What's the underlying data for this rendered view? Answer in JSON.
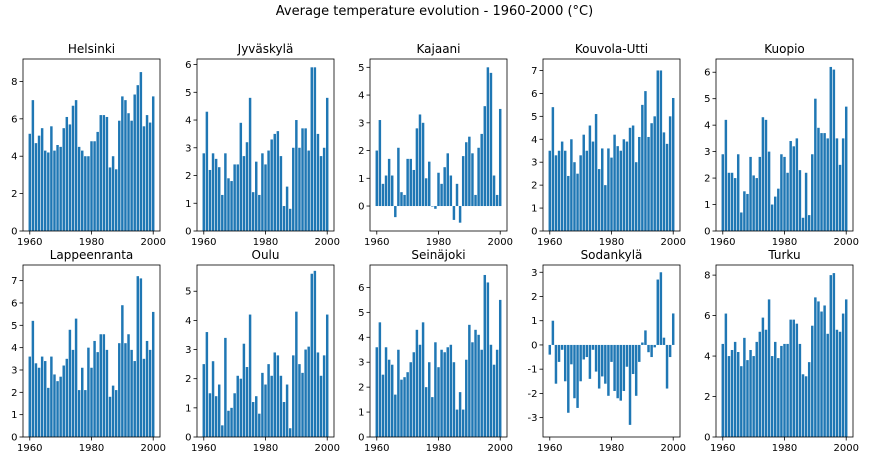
{
  "figure": {
    "title": "Average temperature evolution - 1960-2000 (°C)",
    "bar_color": "#1f77b4"
  },
  "chart_data": [
    {
      "type": "bar",
      "title": "Helsinki",
      "xlabel": "",
      "ylabel": "",
      "x_start": 1960,
      "x_end": 2000,
      "xticks": [
        1960,
        1980,
        2000
      ],
      "ylim": [
        0,
        9.2
      ],
      "yticks": [
        0,
        2,
        4,
        6,
        8
      ],
      "values": [
        5.2,
        7.0,
        4.7,
        5.1,
        5.5,
        4.3,
        4.2,
        5.6,
        4.3,
        4.6,
        4.5,
        5.5,
        6.1,
        5.7,
        6.7,
        7.0,
        4.5,
        4.3,
        4.0,
        4.0,
        4.8,
        4.8,
        5.3,
        6.2,
        6.2,
        6.1,
        3.4,
        4.0,
        3.3,
        5.9,
        7.2,
        7.0,
        6.3,
        5.9,
        7.3,
        7.8,
        8.5,
        5.6,
        6.2,
        5.8,
        7.2
      ]
    },
    {
      "type": "bar",
      "title": "Jyväskylä",
      "xlabel": "",
      "ylabel": "",
      "x_start": 1960,
      "x_end": 2000,
      "xticks": [
        1960,
        1980,
        2000
      ],
      "ylim": [
        0,
        6.2
      ],
      "yticks": [
        0,
        1,
        2,
        3,
        4,
        5,
        6
      ],
      "values": [
        2.8,
        4.3,
        2.2,
        2.8,
        2.6,
        2.3,
        1.3,
        2.8,
        1.9,
        1.8,
        2.4,
        2.4,
        3.9,
        2.7,
        3.2,
        4.8,
        1.4,
        2.5,
        1.3,
        2.8,
        2.4,
        2.9,
        3.3,
        3.5,
        3.6,
        2.7,
        0.9,
        1.6,
        0.8,
        3.0,
        4.0,
        3.0,
        3.7,
        3.7,
        2.9,
        5.9,
        5.9,
        3.5,
        2.7,
        3.0,
        4.8
      ]
    },
    {
      "type": "bar",
      "title": "Kajaani",
      "xlabel": "",
      "ylabel": "",
      "x_start": 1960,
      "x_end": 2000,
      "xticks": [
        1960,
        1980,
        2000
      ],
      "ylim": [
        -0.9,
        5.3
      ],
      "yticks": [
        0,
        1,
        2,
        3,
        4,
        5
      ],
      "values": [
        2.0,
        3.1,
        0.8,
        1.1,
        1.7,
        1.1,
        -0.4,
        2.1,
        0.5,
        0.4,
        1.7,
        1.7,
        1.3,
        2.8,
        3.3,
        3.0,
        1.0,
        1.6,
        0.0,
        -0.1,
        1.2,
        0.8,
        1.4,
        1.9,
        1.1,
        -0.5,
        0.8,
        -0.6,
        1.8,
        2.3,
        2.5,
        1.9,
        0.4,
        2.1,
        2.6,
        3.6,
        5.0,
        4.8,
        1.1,
        0.4,
        3.5
      ]
    },
    {
      "type": "bar",
      "title": "Kouvola-Utti",
      "xlabel": "",
      "ylabel": "",
      "x_start": 1960,
      "x_end": 2000,
      "xticks": [
        1960,
        1980,
        2000
      ],
      "ylim": [
        0,
        7.5
      ],
      "yticks": [
        0,
        1,
        2,
        3,
        4,
        5,
        6,
        7
      ],
      "values": [
        3.5,
        5.4,
        3.3,
        3.5,
        3.9,
        3.5,
        2.4,
        4.0,
        3.0,
        2.5,
        3.3,
        4.2,
        3.5,
        4.6,
        3.9,
        5.1,
        2.7,
        3.6,
        2.0,
        3.6,
        3.2,
        4.2,
        3.7,
        3.5,
        4.0,
        3.9,
        4.5,
        4.6,
        3.0,
        4.1,
        5.5,
        6.1,
        4.1,
        4.7,
        5.0,
        7.0,
        7.0,
        4.3,
        3.8,
        5.0,
        5.8
      ]
    },
    {
      "type": "bar",
      "title": "Kuopio",
      "xlabel": "",
      "ylabel": "",
      "x_start": 1960,
      "x_end": 2000,
      "xticks": [
        1960,
        1980,
        2000
      ],
      "ylim": [
        0,
        6.5
      ],
      "yticks": [
        0,
        1,
        2,
        3,
        4,
        5,
        6
      ],
      "values": [
        2.9,
        4.2,
        2.2,
        2.2,
        2.0,
        2.9,
        0.7,
        1.5,
        1.4,
        2.8,
        2.1,
        2.0,
        2.8,
        4.3,
        4.2,
        3.0,
        1.0,
        1.3,
        1.6,
        2.9,
        2.8,
        2.2,
        3.4,
        3.2,
        3.5,
        2.3,
        0.5,
        2.2,
        0.6,
        2.9,
        5.0,
        3.9,
        3.7,
        3.7,
        3.5,
        6.2,
        6.1,
        3.5,
        2.5,
        3.5,
        4.7
      ]
    },
    {
      "type": "bar",
      "title": "Lappeenranta",
      "xlabel": "",
      "ylabel": "",
      "x_start": 1960,
      "x_end": 2000,
      "xticks": [
        1960,
        1980,
        2000
      ],
      "ylim": [
        0,
        7.7
      ],
      "yticks": [
        0,
        1,
        2,
        3,
        4,
        5,
        6,
        7
      ],
      "values": [
        3.6,
        5.2,
        3.3,
        3.1,
        3.6,
        3.4,
        2.2,
        3.6,
        2.8,
        2.5,
        2.7,
        3.2,
        3.5,
        4.8,
        3.9,
        5.3,
        2.1,
        3.1,
        2.1,
        4.0,
        3.1,
        4.3,
        3.8,
        4.6,
        4.6,
        3.9,
        1.8,
        2.3,
        2.1,
        4.2,
        5.9,
        4.2,
        4.6,
        3.9,
        3.4,
        7.2,
        7.1,
        3.5,
        4.3,
        3.9,
        5.6
      ]
    },
    {
      "type": "bar",
      "title": "Oulu",
      "xlabel": "",
      "ylabel": "",
      "x_start": 1960,
      "x_end": 2000,
      "xticks": [
        1960,
        1980,
        2000
      ],
      "ylim": [
        0,
        5.9
      ],
      "yticks": [
        0,
        1,
        2,
        3,
        4,
        5
      ],
      "values": [
        2.5,
        3.6,
        1.5,
        2.6,
        1.4,
        1.8,
        0.4,
        3.4,
        0.9,
        1.0,
        1.5,
        2.1,
        2.0,
        3.2,
        2.4,
        4.2,
        1.2,
        1.4,
        0.8,
        2.2,
        1.8,
        2.5,
        2.1,
        2.9,
        2.8,
        2.1,
        1.2,
        1.8,
        0.3,
        2.8,
        4.3,
        2.5,
        2.2,
        3.0,
        3.1,
        5.6,
        5.7,
        2.9,
        2.1,
        2.8,
        4.2
      ]
    },
    {
      "type": "bar",
      "title": "Seinäjoki",
      "xlabel": "",
      "ylabel": "",
      "x_start": 1960,
      "x_end": 2000,
      "xticks": [
        1960,
        1980,
        2000
      ],
      "ylim": [
        0,
        6.9
      ],
      "yticks": [
        0,
        1,
        2,
        3,
        4,
        5,
        6
      ],
      "values": [
        3.6,
        4.6,
        2.5,
        3.6,
        3.1,
        2.9,
        1.7,
        3.5,
        2.3,
        2.4,
        2.6,
        3.0,
        3.4,
        4.3,
        3.7,
        4.6,
        2.0,
        3.0,
        1.6,
        3.8,
        2.8,
        3.5,
        3.4,
        3.6,
        3.7,
        3.0,
        1.1,
        1.8,
        1.1,
        3.1,
        4.5,
        3.8,
        4.3,
        4.1,
        3.5,
        6.5,
        6.2,
        3.7,
        2.9,
        3.5,
        5.5
      ]
    },
    {
      "type": "bar",
      "title": "Sodankylä",
      "xlabel": "",
      "ylabel": "",
      "x_start": 1960,
      "x_end": 2000,
      "xticks": [
        1960,
        1980,
        2000
      ],
      "ylim": [
        -3.8,
        3.3
      ],
      "yticks": [
        -3,
        -2,
        -1,
        0,
        1,
        2,
        3
      ],
      "values": [
        -0.4,
        1.0,
        -1.6,
        -0.7,
        -0.2,
        -1.5,
        -2.8,
        -0.8,
        -2.2,
        -2.6,
        -1.5,
        -0.6,
        -0.5,
        -1.4,
        -0.2,
        -1.1,
        -1.8,
        -1.3,
        -1.6,
        -2.1,
        -0.7,
        -1.9,
        -2.2,
        -2.3,
        -1.9,
        -0.9,
        -3.3,
        -1.2,
        -2.1,
        -0.7,
        0.1,
        0.6,
        -0.3,
        -0.5,
        -0.1,
        2.7,
        3.0,
        0.3,
        -1.8,
        -0.5,
        1.3
      ]
    },
    {
      "type": "bar",
      "title": "Turku",
      "xlabel": "",
      "ylabel": "",
      "x_start": 1960,
      "x_end": 2000,
      "xticks": [
        1960,
        1980,
        2000
      ],
      "ylim": [
        0,
        8.5
      ],
      "yticks": [
        0,
        2,
        4,
        6,
        8
      ],
      "values": [
        4.6,
        6.1,
        4.0,
        4.3,
        4.7,
        4.2,
        3.5,
        4.9,
        3.8,
        4.3,
        4.0,
        4.7,
        5.2,
        5.9,
        5.3,
        6.8,
        4.0,
        4.7,
        3.9,
        4.5,
        4.6,
        4.6,
        5.8,
        5.8,
        5.6,
        4.6,
        3.1,
        3.0,
        3.7,
        5.5,
        6.9,
        6.7,
        6.2,
        6.5,
        5.1,
        8.0,
        8.1,
        5.3,
        5.2,
        6.1,
        6.8
      ]
    }
  ]
}
